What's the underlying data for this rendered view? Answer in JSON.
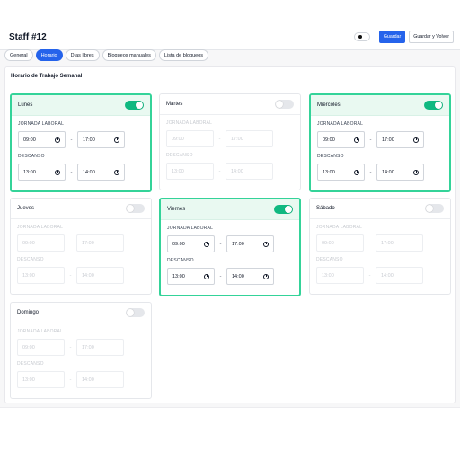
{
  "page": {
    "title": "Staff #12",
    "actions": {
      "save": "Guardar",
      "save_back": "Guardar y Volver"
    }
  },
  "tabs": [
    {
      "label": "General",
      "active": false
    },
    {
      "label": "Horario",
      "active": true
    },
    {
      "label": "Días libres",
      "active": false
    },
    {
      "label": "Bloqueos manuales",
      "active": false
    },
    {
      "label": "Lista de bloqueos",
      "active": false
    }
  ],
  "section_title": "Horario de Trabajo Semanal",
  "labels": {
    "work": "JORNADA LABORAL",
    "break": "DESCANSO"
  },
  "days": [
    {
      "name": "Lunes",
      "enabled": true,
      "work_start": "09:00",
      "work_end": "17:00",
      "break_start": "13:00",
      "break_end": "14:00"
    },
    {
      "name": "Martes",
      "enabled": false,
      "work_start": "09:00",
      "work_end": "17:00",
      "break_start": "13:00",
      "break_end": "14:00"
    },
    {
      "name": "Miércoles",
      "enabled": true,
      "work_start": "09:00",
      "work_end": "17:00",
      "break_start": "13:00",
      "break_end": "14:00"
    },
    {
      "name": "Jueves",
      "enabled": false,
      "work_start": "09:00",
      "work_end": "17:00",
      "break_start": "13:00",
      "break_end": "14:00"
    },
    {
      "name": "Viernes",
      "enabled": true,
      "work_start": "09:00",
      "work_end": "17:00",
      "break_start": "13:00",
      "break_end": "14:00"
    },
    {
      "name": "Sábado",
      "enabled": false,
      "work_start": "09:00",
      "work_end": "17:00",
      "break_start": "13:00",
      "break_end": "14:00"
    },
    {
      "name": "Domingo",
      "enabled": false,
      "work_start": "09:00",
      "work_end": "17:00",
      "break_start": "13:00",
      "break_end": "14:00"
    }
  ],
  "separator": "-",
  "colors": {
    "accent": "#2563eb",
    "active_border": "#34d399",
    "toggle_on": "#10b981",
    "active_head_bg": "#e9f9f1"
  }
}
